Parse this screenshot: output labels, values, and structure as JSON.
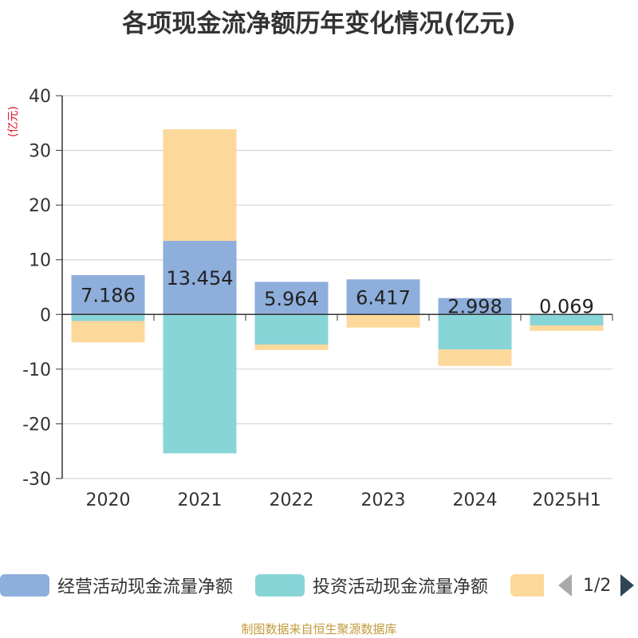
{
  "chart_data": {
    "type": "bar",
    "stacked": true,
    "title": "各项现金流净额历年变化情况(亿元)",
    "ylabel": "(亿元)",
    "categories": [
      "2020",
      "2021",
      "2022",
      "2023",
      "2024",
      "2025H1"
    ],
    "ylim": [
      -30,
      40
    ],
    "yticks": [
      40,
      30,
      20,
      10,
      0,
      -10,
      -20,
      -30
    ],
    "grid": true,
    "legend_position": "bottom",
    "series": [
      {
        "name": "经营活动现金流量净额",
        "color": "#8eaedb",
        "values": [
          7.186,
          13.454,
          5.964,
          6.417,
          2.998,
          0.069
        ],
        "labels": [
          "7.186",
          "13.454",
          "5.964",
          "6.417",
          "2.998",
          "0.069"
        ]
      },
      {
        "name": "投资活动现金流量净额",
        "color": "#88d5d8",
        "values": [
          -1.2,
          -25.4,
          -5.5,
          -0.1,
          -6.4,
          -2.0
        ]
      },
      {
        "name": "",
        "color": "#fdd89b",
        "values": [
          -3.9,
          20.4,
          -1.0,
          -2.3,
          -3.0,
          -1.0
        ]
      }
    ]
  },
  "legend": {
    "items": [
      {
        "label": "经营活动现金流量净额",
        "color": "#8eaedb"
      },
      {
        "label": "投资活动现金流量净额",
        "color": "#88d5d8"
      },
      {
        "label": "",
        "color": "#fdd89b"
      }
    ],
    "page_text": "1/2"
  },
  "source": "制图数据来自恒生聚源数据库"
}
